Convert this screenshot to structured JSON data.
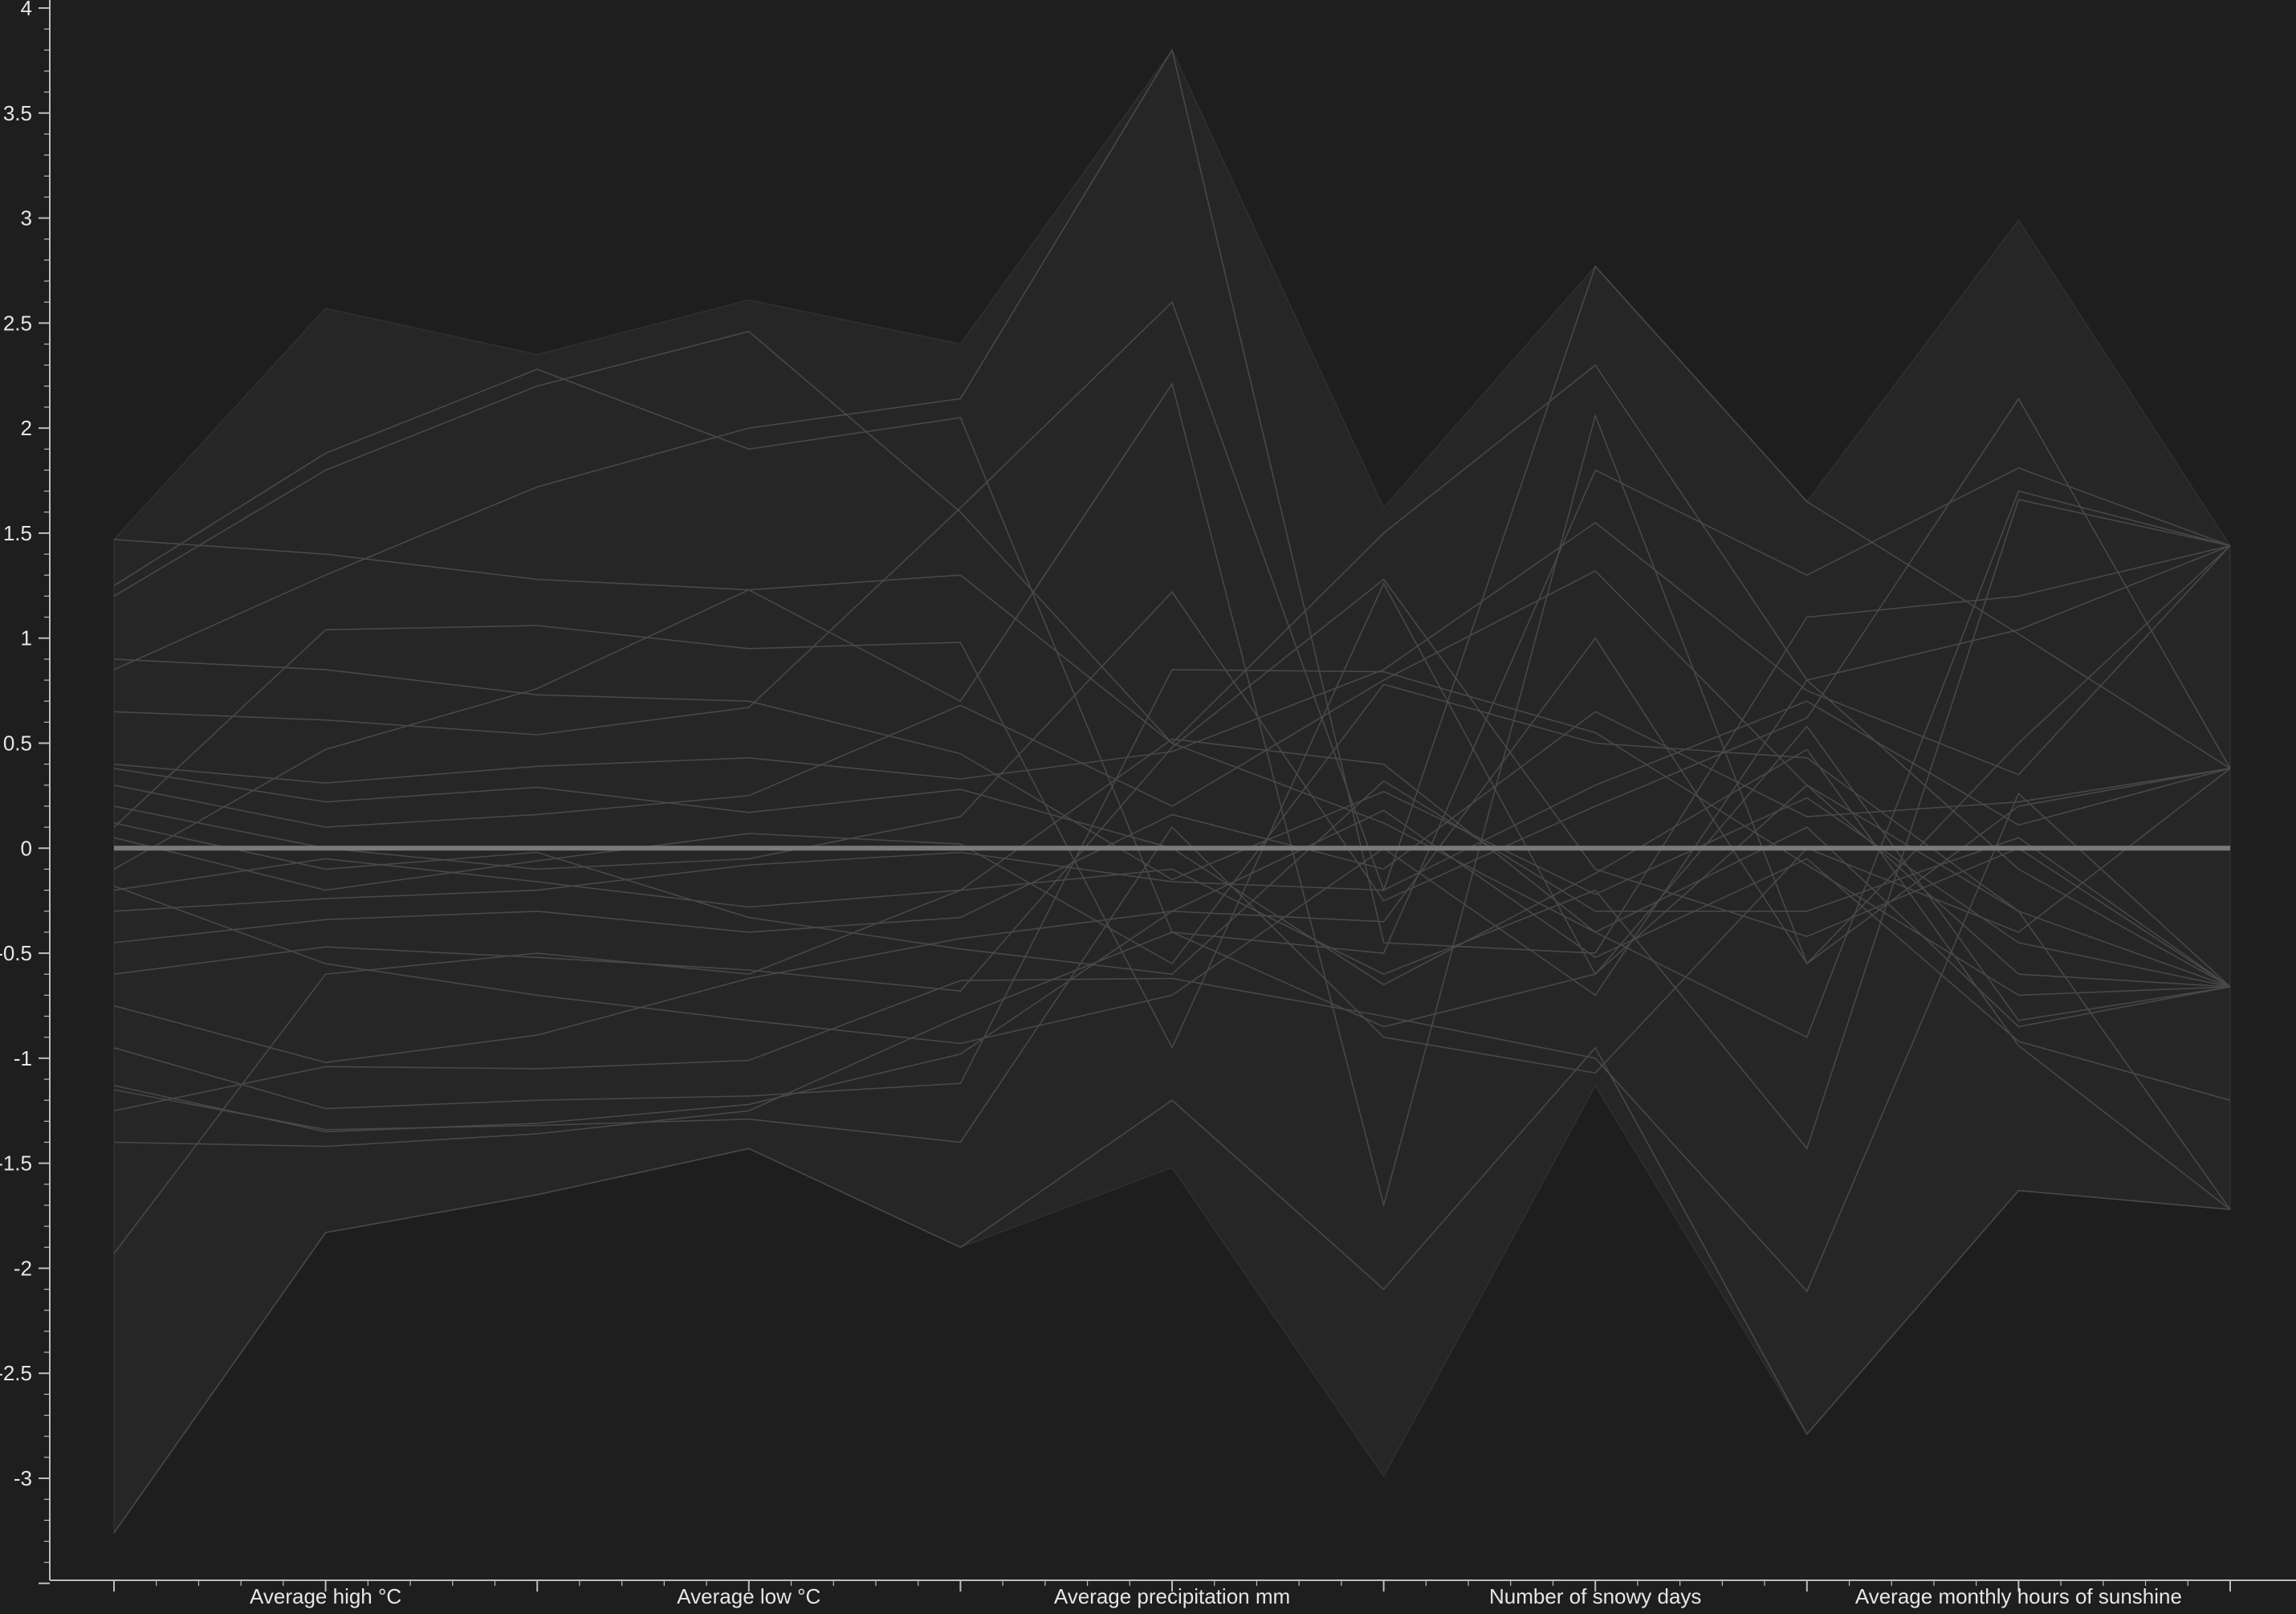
{
  "colors": {
    "background": "#1e1e1e",
    "band": "#262626",
    "axis": "#bdbdbd",
    "series_line": "#4a4a4a",
    "mean_line": "#7a7a7a",
    "text": "#e6e6e6"
  },
  "chart_data": {
    "type": "line",
    "title": "",
    "xlabel": "",
    "ylabel": "",
    "ylim": [
      -3.5,
      4
    ],
    "grid": false,
    "legend": "none",
    "x": [
      0,
      0.5,
      1,
      1.5,
      2,
      2.5,
      3,
      3.5,
      4,
      4.5,
      5
    ],
    "categories": [
      "Average high °C",
      "Average low °C",
      "Average precipitation mm",
      "Number of snowy days",
      "Average monthly hours of sunshine"
    ],
    "category_positions": [
      0.5,
      1.5,
      2.5,
      3.5,
      4.5
    ],
    "y_ticks": [
      {
        "value": 4,
        "label": "4"
      },
      {
        "value": 3.5,
        "label": "3.5"
      },
      {
        "value": 3,
        "label": "3"
      },
      {
        "value": 2.5,
        "label": "2.5"
      },
      {
        "value": 2,
        "label": "2"
      },
      {
        "value": 1.5,
        "label": "1.5"
      },
      {
        "value": 1,
        "label": "1"
      },
      {
        "value": 0.5,
        "label": "0.5"
      },
      {
        "value": 0,
        "label": "0"
      },
      {
        "value": -0.5,
        "label": "-0.5"
      },
      {
        "value": -1,
        "label": "-1"
      },
      {
        "value": -1.5,
        "label": "-1.5"
      },
      {
        "value": -2,
        "label": "-2"
      },
      {
        "value": -2.5,
        "label": "-2.5"
      },
      {
        "value": -3,
        "label": "-3"
      }
    ],
    "band_upper": [
      1.47,
      2.57,
      2.35,
      2.61,
      2.4,
      3.8,
      1.62,
      2.77,
      1.65,
      2.99,
      1.44
    ],
    "band_lower": [
      -3.26,
      -1.83,
      -1.65,
      -1.43,
      -1.9,
      -1.52,
      -2.99,
      -1.13,
      -2.79,
      -1.63,
      -1.72
    ],
    "mean": [
      0,
      0,
      0,
      0,
      0,
      0,
      0,
      0,
      0,
      0,
      0
    ],
    "series": [
      {
        "values": [
          1.47,
          1.4,
          1.28,
          1.23,
          1.3,
          0.5,
          0.12,
          -0.4,
          -0.9,
          1.7,
          1.44
        ]
      },
      {
        "values": [
          1.2,
          1.8,
          2.2,
          2.46,
          1.6,
          0.5,
          1.5,
          2.3,
          0.8,
          1.04,
          1.44
        ]
      },
      {
        "values": [
          1.25,
          1.88,
          2.28,
          1.9,
          2.05,
          -0.4,
          -0.5,
          1.8,
          1.3,
          1.81,
          1.44
        ]
      },
      {
        "values": [
          0.85,
          1.3,
          1.72,
          2.0,
          2.14,
          3.8,
          -0.45,
          -0.5,
          1.1,
          1.2,
          1.44
        ]
      },
      {
        "values": [
          0.1,
          1.04,
          1.06,
          0.95,
          0.98,
          -0.95,
          1.26,
          -0.6,
          0.58,
          -0.82,
          -0.66
        ]
      },
      {
        "values": [
          0.65,
          0.61,
          0.54,
          0.67,
          1.62,
          2.6,
          -0.2,
          2.77,
          1.65,
          1.02,
          0.38
        ]
      },
      {
        "values": [
          -0.1,
          0.47,
          0.76,
          1.23,
          0.7,
          2.21,
          -1.7,
          2.06,
          -0.55,
          0.2,
          0.38
        ]
      },
      {
        "values": [
          0.4,
          0.31,
          0.39,
          0.43,
          0.33,
          0.46,
          0.85,
          1.55,
          0.75,
          0.35,
          1.44
        ]
      },
      {
        "values": [
          0.3,
          0.1,
          0.16,
          0.25,
          0.68,
          0.2,
          0.8,
          1.32,
          0.3,
          -0.6,
          -0.66
        ]
      },
      {
        "values": [
          0.2,
          0.0,
          -0.1,
          -0.05,
          0.15,
          1.22,
          -0.25,
          0.2,
          0.62,
          2.14,
          0.38
        ]
      },
      {
        "values": [
          0.05,
          -0.2,
          -0.06,
          0.07,
          0.02,
          -0.55,
          0.78,
          0.5,
          0.43,
          -0.3,
          -0.66
        ]
      },
      {
        "values": [
          -0.2,
          -0.05,
          -0.16,
          -0.28,
          -0.2,
          0.52,
          0.4,
          -0.4,
          0.1,
          -0.85,
          -0.66
        ]
      },
      {
        "values": [
          -0.45,
          -0.34,
          -0.3,
          -0.4,
          -0.33,
          0.16,
          -0.1,
          0.65,
          0.15,
          0.22,
          0.38
        ]
      },
      {
        "values": [
          -0.6,
          -0.47,
          -0.52,
          -0.58,
          -0.68,
          0.48,
          1.28,
          -0.1,
          -0.42,
          0.0,
          -0.66
        ]
      },
      {
        "values": [
          -0.75,
          -1.02,
          -0.89,
          -0.62,
          -0.43,
          -0.3,
          0.18,
          -0.52,
          -0.05,
          -0.92,
          -1.2
        ]
      },
      {
        "values": [
          -0.95,
          -1.24,
          -1.2,
          -1.18,
          -1.12,
          0.85,
          0.84,
          0.55,
          -0.08,
          -0.7,
          -0.66
        ]
      },
      {
        "values": [
          -1.13,
          -1.35,
          -1.31,
          -1.22,
          -0.98,
          -0.3,
          -0.35,
          1.0,
          -0.55,
          0.5,
          1.44
        ]
      },
      {
        "values": [
          -1.25,
          -1.04,
          -1.05,
          -1.01,
          -0.63,
          -0.62,
          -0.8,
          -1.0,
          -2.11,
          0.26,
          -0.66
        ]
      },
      {
        "values": [
          -1.4,
          -1.42,
          -1.36,
          -1.25,
          -0.8,
          -0.4,
          -0.85,
          -0.6,
          0.3,
          -0.3,
          -1.72
        ]
      },
      {
        "values": [
          -1.93,
          -0.6,
          -0.5,
          -0.6,
          -0.2,
          -0.1,
          -0.6,
          -0.2,
          -1.43,
          1.66,
          1.44
        ]
      },
      {
        "values": [
          -3.26,
          -1.83,
          -1.65,
          -1.43,
          -1.9,
          -1.2,
          -2.1,
          -0.95,
          -2.79,
          -1.63,
          -1.72
        ]
      },
      {
        "values": [
          0.9,
          0.85,
          0.73,
          0.7,
          0.45,
          -0.15,
          0.27,
          -0.22,
          0.24,
          -0.45,
          -0.66
        ]
      },
      {
        "values": [
          0.38,
          0.22,
          0.29,
          0.17,
          0.28,
          0.0,
          -0.65,
          -0.12,
          0.47,
          -0.94,
          -1.72
        ]
      },
      {
        "values": [
          -0.3,
          -0.24,
          -0.2,
          -0.08,
          -0.02,
          -0.16,
          -0.2,
          0.3,
          0.7,
          0.11,
          0.38
        ]
      },
      {
        "values": [
          0.12,
          -0.1,
          -0.02,
          -0.33,
          -0.48,
          -0.6,
          0.32,
          -0.3,
          -0.3,
          0.05,
          -0.66
        ]
      },
      {
        "values": [
          -1.15,
          -1.34,
          -1.32,
          -1.29,
          -1.4,
          0.1,
          -0.9,
          -1.07,
          0.0,
          -0.4,
          0.38
        ]
      },
      {
        "values": [
          -0.18,
          -0.55,
          -0.7,
          -0.82,
          -0.93,
          -0.7,
          0.0,
          -0.7,
          0.8,
          -0.1,
          -0.66
        ]
      }
    ]
  }
}
